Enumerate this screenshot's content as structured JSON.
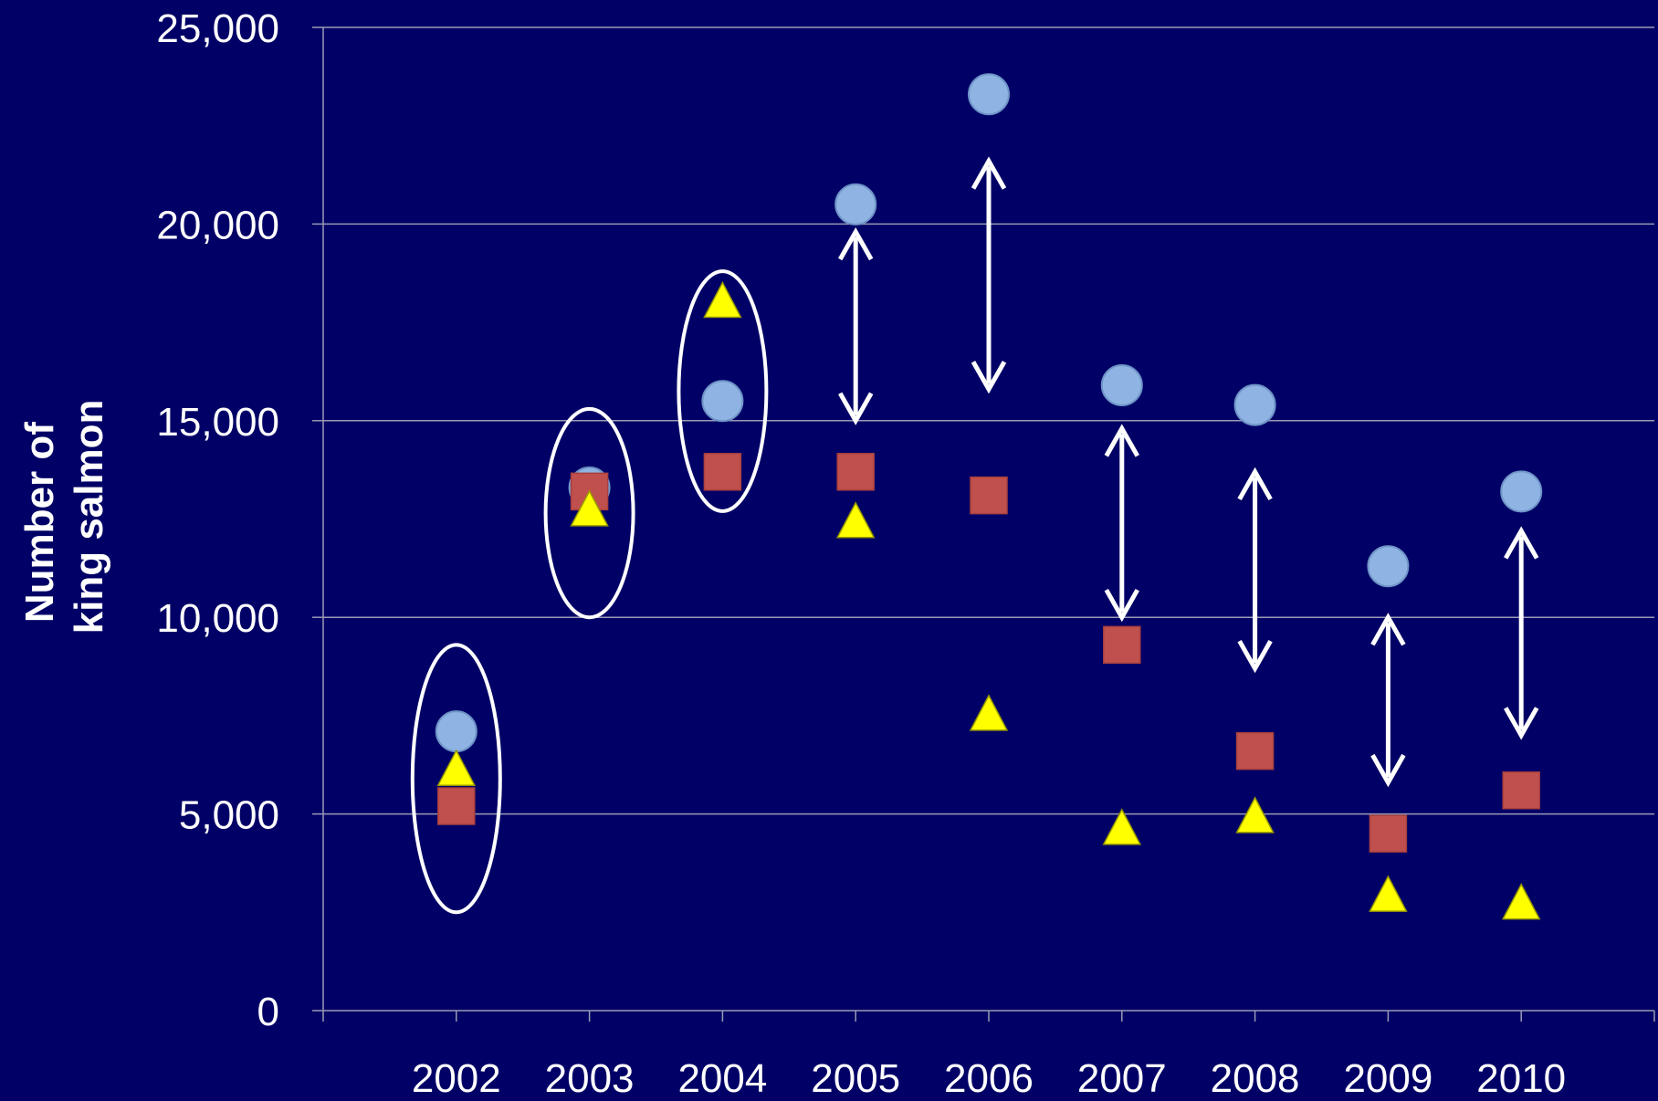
{
  "chart_data": {
    "type": "scatter",
    "title": "",
    "xlabel": "",
    "ylabel_lines": [
      "Number of",
      "king salmon"
    ],
    "categories": [
      "2002",
      "2003",
      "2004",
      "2005",
      "2006",
      "2007",
      "2008",
      "2009",
      "2010"
    ],
    "ylim": [
      0,
      25000
    ],
    "yticks": [
      0,
      5000,
      10000,
      15000,
      20000,
      25000
    ],
    "ytick_labels": [
      "0",
      "5,000",
      "10,000",
      "15,000",
      "20,000",
      "25,000"
    ],
    "grid": true,
    "legend": "none",
    "series": [
      {
        "marker": "circle",
        "color": "#8fb4e3",
        "values": [
          7100,
          13300,
          15500,
          20500,
          23300,
          15900,
          15400,
          11300,
          13200
        ]
      },
      {
        "marker": "square",
        "color": "#c0504d",
        "values": [
          5200,
          13200,
          13700,
          13700,
          13100,
          9300,
          6600,
          4500,
          5600
        ]
      },
      {
        "marker": "triangle",
        "color": "#ffff00",
        "values": [
          6100,
          12700,
          18000,
          12400,
          7500,
          4600,
          4900,
          2900,
          2700
        ]
      }
    ],
    "annotations": {
      "ellipses": [
        {
          "category": "2002",
          "y_from": 2500,
          "y_to": 9300
        },
        {
          "category": "2003",
          "y_from": 10000,
          "y_to": 15300
        },
        {
          "category": "2004",
          "y_from": 12700,
          "y_to": 18800
        }
      ],
      "double_arrows": [
        {
          "category": "2005",
          "y_from": 15000,
          "y_to": 19800
        },
        {
          "category": "2006",
          "y_from": 15800,
          "y_to": 21600
        },
        {
          "category": "2007",
          "y_from": 10000,
          "y_to": 14800
        },
        {
          "category": "2008",
          "y_from": 8700,
          "y_to": 13700
        },
        {
          "category": "2009",
          "y_from": 5800,
          "y_to": 10000
        },
        {
          "category": "2010",
          "y_from": 7000,
          "y_to": 12200
        }
      ]
    }
  }
}
